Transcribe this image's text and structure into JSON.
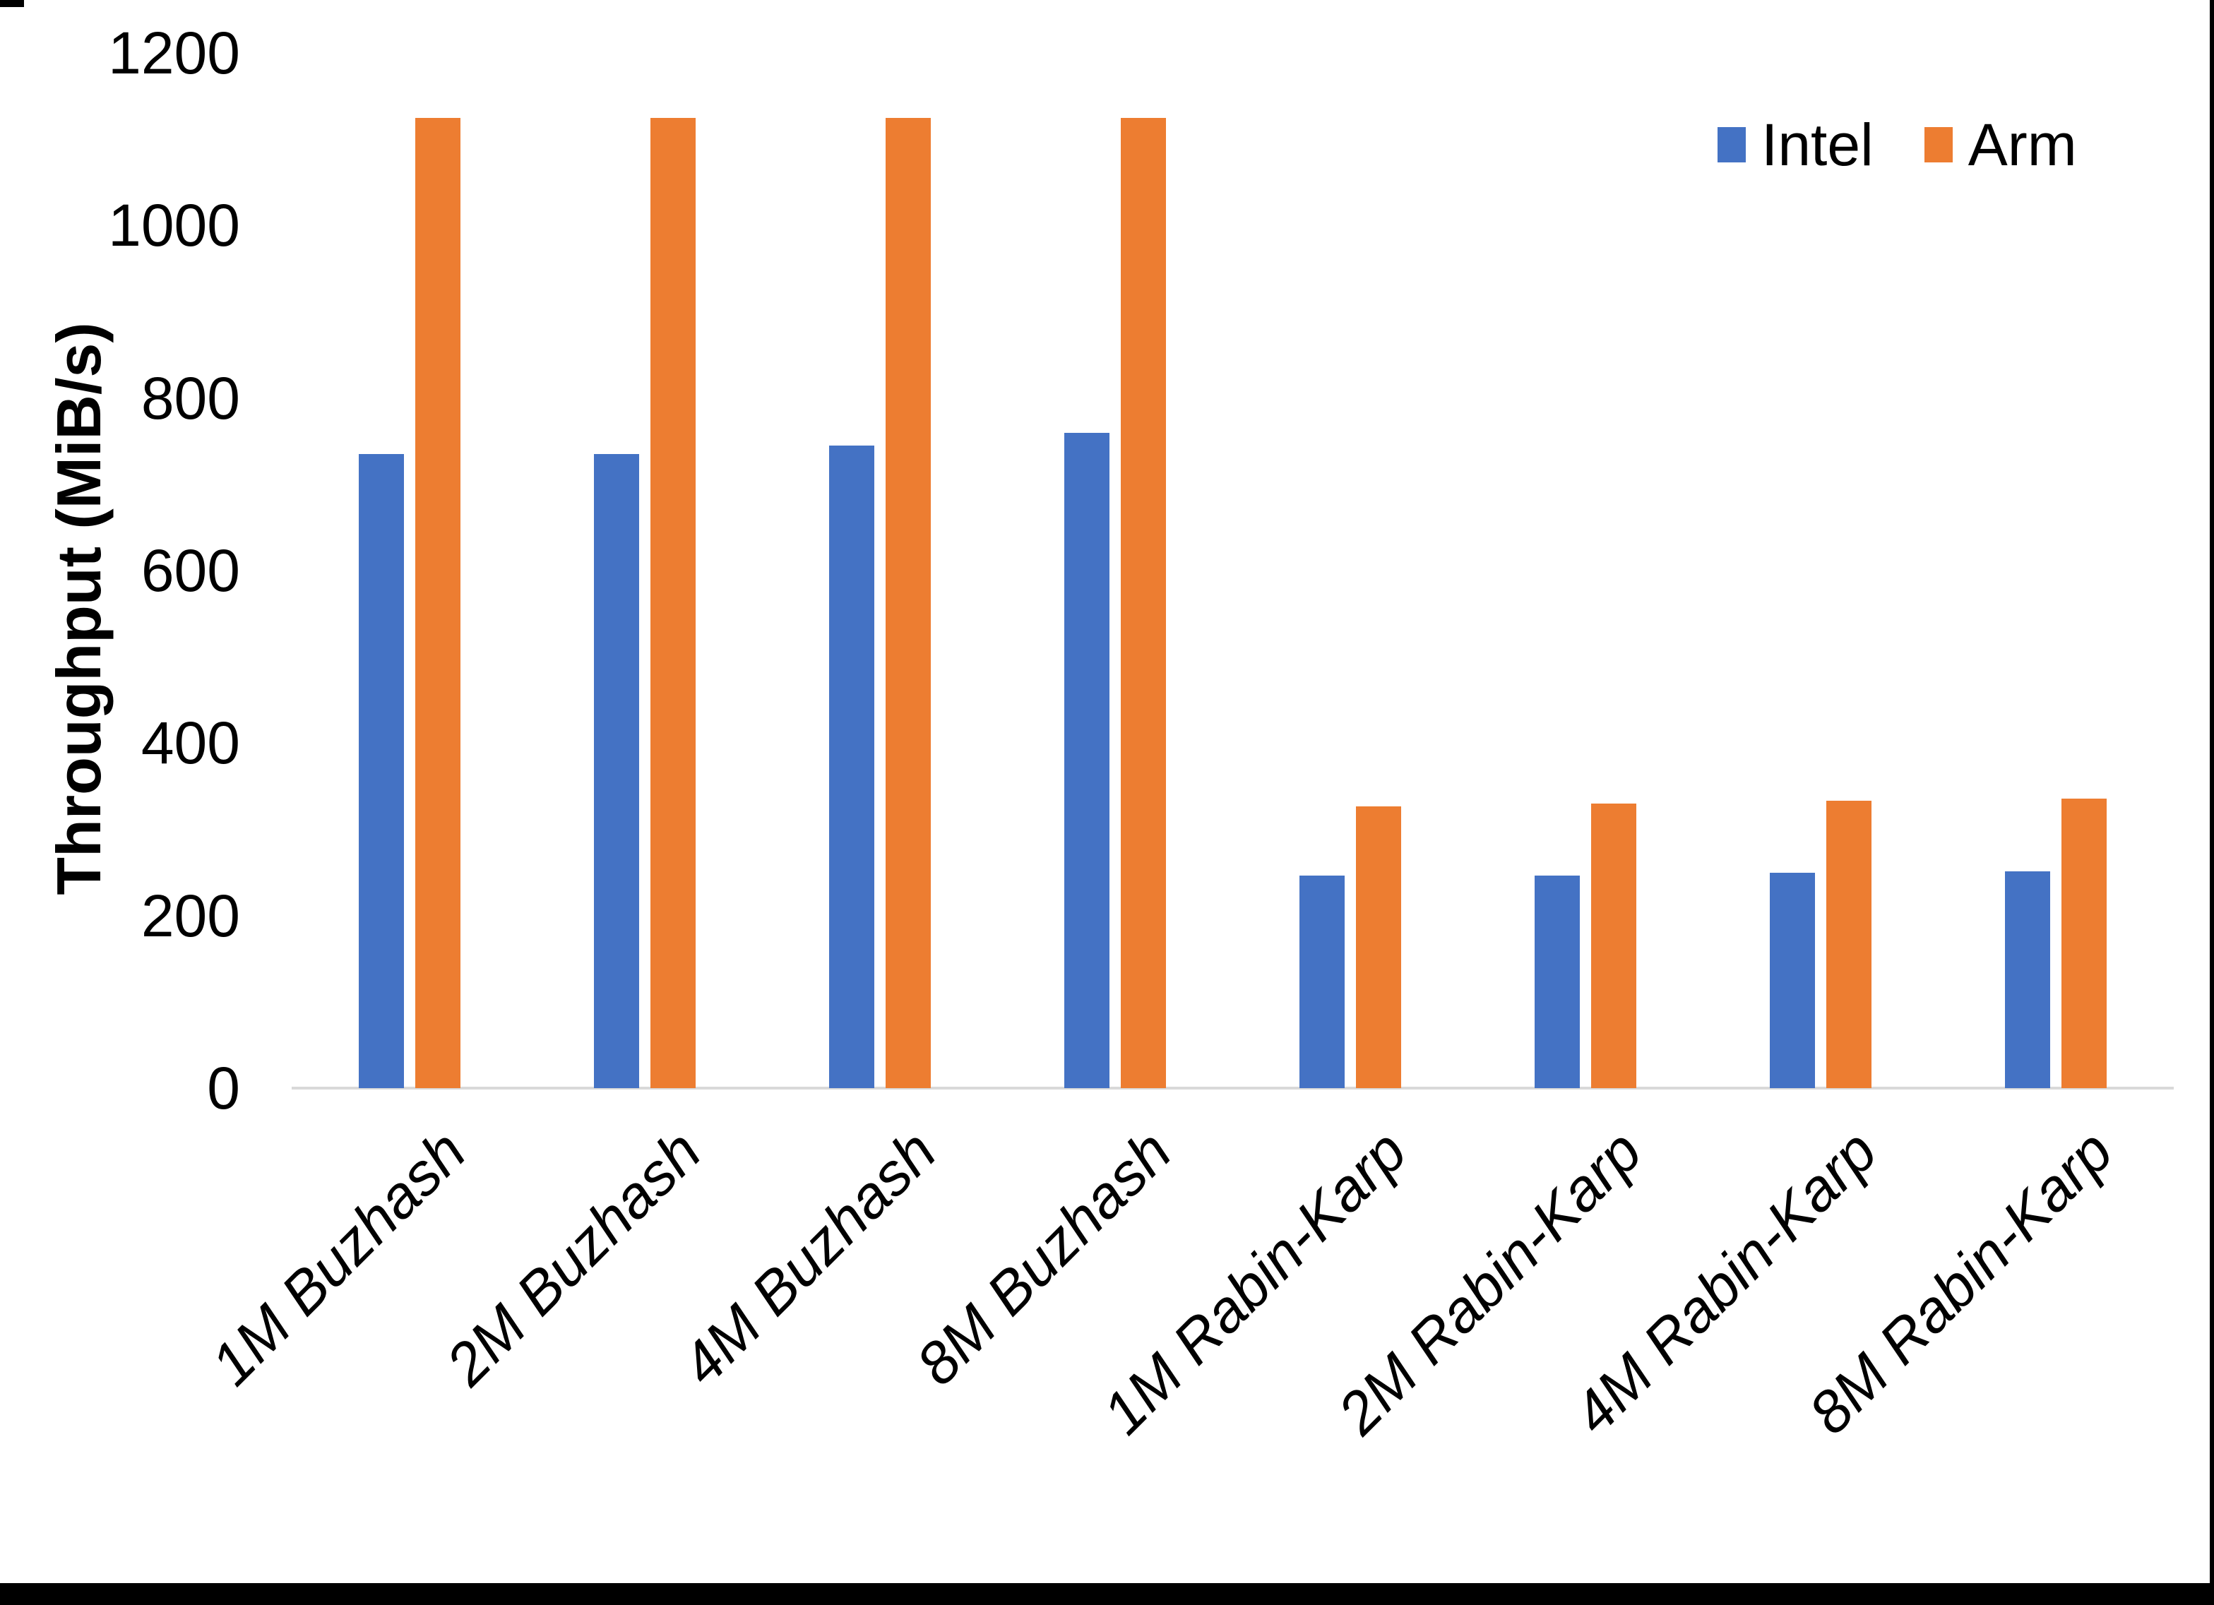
{
  "chart_data": {
    "type": "bar",
    "title": "",
    "ylabel": "Throughput (MiB/s)",
    "xlabel": "",
    "ylim": [
      0,
      1200
    ],
    "yticks": [
      0,
      200,
      400,
      600,
      800,
      1000,
      1200
    ],
    "grid": false,
    "legend_position": "top-right",
    "categories": [
      "1M Buzhash",
      "2M Buzhash",
      "4M Buzhash",
      "8M Buzhash",
      "1M Rabin-Karp",
      "2M Rabin-Karp",
      "4M Rabin-Karp",
      "8M Rabin-Karp"
    ],
    "series": [
      {
        "name": "Intel",
        "color": "#4472C4",
        "values": [
          735,
          735,
          745,
          760,
          246,
          246,
          250,
          251
        ]
      },
      {
        "name": "Arm",
        "color": "#ED7D31",
        "values": [
          1125,
          1125,
          1125,
          1125,
          327,
          330,
          333,
          336
        ]
      }
    ]
  },
  "colors": {
    "axis_line": "#D9D9D9",
    "frame": "#000000",
    "text": "#000000"
  }
}
